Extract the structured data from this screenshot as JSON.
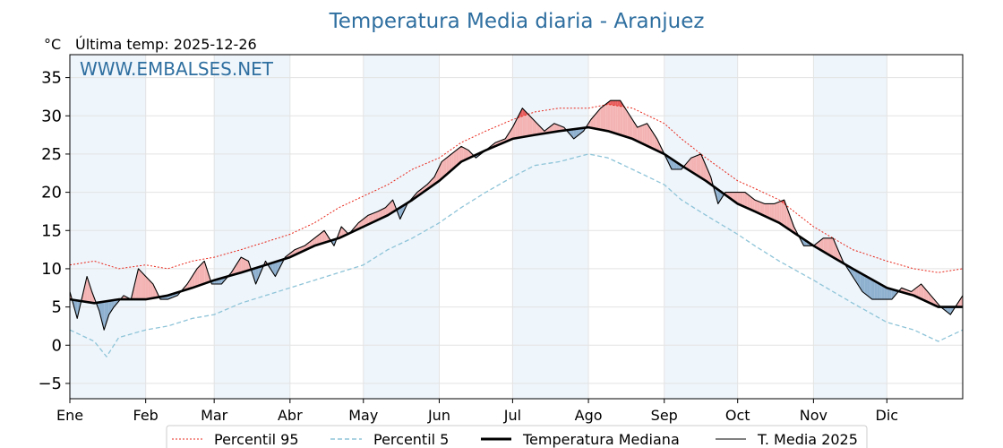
{
  "chart_data": {
    "type": "line",
    "title": "Temperatura Media diaria - Aranjuez",
    "unit_label": "°C",
    "last_temp_label": "Última temp: 2025-12-26",
    "watermark": "WWW.EMBALSES.NET",
    "ylim": [
      -7,
      38
    ],
    "yticks": [
      -5,
      0,
      5,
      10,
      15,
      20,
      25,
      30,
      35
    ],
    "xlim": [
      0,
      365
    ],
    "months": [
      "Ene",
      "Feb",
      "Mar",
      "Abr",
      "May",
      "Jun",
      "Jul",
      "Ago",
      "Sep",
      "Oct",
      "Nov",
      "Dic"
    ],
    "month_starts": [
      0,
      31,
      59,
      90,
      120,
      151,
      181,
      212,
      243,
      273,
      304,
      334
    ],
    "grid": true,
    "legend_position": "bottom",
    "colors": {
      "p95": "#e8281c",
      "p5": "#8ec4d8",
      "median": "#000000",
      "current": "#000000",
      "above_fill": "#f4b3b3",
      "above_strong": "#e85d5d",
      "below_fill": "#8fb1d0",
      "below_strong": "#2a5f96",
      "band": "#eef5fb",
      "title": "#2f6fa0"
    },
    "series": [
      {
        "name": "Percentil 95",
        "style": "dotted-red",
        "points": [
          [
            0,
            10.5
          ],
          [
            10,
            11
          ],
          [
            20,
            10
          ],
          [
            31,
            10.5
          ],
          [
            40,
            10
          ],
          [
            50,
            11
          ],
          [
            59,
            11.5
          ],
          [
            70,
            12.5
          ],
          [
            80,
            13.5
          ],
          [
            90,
            14.5
          ],
          [
            100,
            16
          ],
          [
            110,
            18
          ],
          [
            120,
            19.5
          ],
          [
            130,
            21
          ],
          [
            140,
            23
          ],
          [
            151,
            24.5
          ],
          [
            160,
            26.5
          ],
          [
            170,
            28
          ],
          [
            181,
            29.5
          ],
          [
            190,
            30.5
          ],
          [
            200,
            31
          ],
          [
            212,
            31
          ],
          [
            220,
            31.5
          ],
          [
            230,
            31
          ],
          [
            243,
            29
          ],
          [
            250,
            27
          ],
          [
            260,
            24.5
          ],
          [
            273,
            21.5
          ],
          [
            280,
            20.5
          ],
          [
            290,
            19
          ],
          [
            304,
            15.5
          ],
          [
            312,
            14
          ],
          [
            320,
            12.5
          ],
          [
            334,
            11
          ],
          [
            345,
            10
          ],
          [
            355,
            9.5
          ],
          [
            365,
            10
          ]
        ]
      },
      {
        "name": "Percentil 5",
        "style": "dashed-lightblue",
        "points": [
          [
            0,
            2
          ],
          [
            10,
            0.5
          ],
          [
            15,
            -1.5
          ],
          [
            20,
            1
          ],
          [
            31,
            2
          ],
          [
            40,
            2.5
          ],
          [
            50,
            3.5
          ],
          [
            59,
            4
          ],
          [
            70,
            5.5
          ],
          [
            80,
            6.5
          ],
          [
            90,
            7.5
          ],
          [
            100,
            8.5
          ],
          [
            110,
            9.5
          ],
          [
            120,
            10.5
          ],
          [
            130,
            12.5
          ],
          [
            140,
            14
          ],
          [
            151,
            16
          ],
          [
            160,
            18
          ],
          [
            170,
            20
          ],
          [
            181,
            22
          ],
          [
            190,
            23.5
          ],
          [
            200,
            24
          ],
          [
            212,
            25
          ],
          [
            220,
            24.5
          ],
          [
            230,
            23
          ],
          [
            243,
            21
          ],
          [
            250,
            19
          ],
          [
            260,
            17
          ],
          [
            273,
            14.5
          ],
          [
            280,
            13
          ],
          [
            290,
            11
          ],
          [
            304,
            8.5
          ],
          [
            312,
            7
          ],
          [
            320,
            5.5
          ],
          [
            334,
            3
          ],
          [
            345,
            2
          ],
          [
            355,
            0.5
          ],
          [
            365,
            2
          ]
        ]
      },
      {
        "name": "Temperatura Mediana",
        "style": "thick-black",
        "points": [
          [
            0,
            6
          ],
          [
            10,
            5.5
          ],
          [
            20,
            6
          ],
          [
            31,
            6
          ],
          [
            40,
            6.5
          ],
          [
            50,
            7.5
          ],
          [
            59,
            8.5
          ],
          [
            70,
            9.5
          ],
          [
            80,
            10.5
          ],
          [
            90,
            11.5
          ],
          [
            100,
            13
          ],
          [
            110,
            14
          ],
          [
            120,
            15.5
          ],
          [
            130,
            17
          ],
          [
            140,
            19
          ],
          [
            151,
            21.5
          ],
          [
            160,
            24
          ],
          [
            170,
            25.5
          ],
          [
            181,
            27
          ],
          [
            190,
            27.5
          ],
          [
            200,
            28
          ],
          [
            212,
            28.5
          ],
          [
            220,
            28
          ],
          [
            230,
            27
          ],
          [
            243,
            25
          ],
          [
            250,
            23.5
          ],
          [
            260,
            21.5
          ],
          [
            273,
            18.5
          ],
          [
            280,
            17.5
          ],
          [
            290,
            16
          ],
          [
            304,
            13
          ],
          [
            312,
            11.5
          ],
          [
            320,
            10
          ],
          [
            334,
            7.5
          ],
          [
            345,
            6.5
          ],
          [
            355,
            5
          ],
          [
            365,
            5
          ]
        ]
      },
      {
        "name": "T. Media 2025",
        "style": "thin-black",
        "points": [
          [
            0,
            7
          ],
          [
            3,
            3.5
          ],
          [
            7,
            9
          ],
          [
            9,
            7
          ],
          [
            12,
            4.5
          ],
          [
            14,
            2
          ],
          [
            16,
            4
          ],
          [
            18,
            5
          ],
          [
            22,
            6.5
          ],
          [
            25,
            6
          ],
          [
            28,
            10
          ],
          [
            31,
            9
          ],
          [
            34,
            8
          ],
          [
            37,
            6
          ],
          [
            40,
            6
          ],
          [
            44,
            6.5
          ],
          [
            48,
            8
          ],
          [
            52,
            10
          ],
          [
            55,
            11
          ],
          [
            58,
            8
          ],
          [
            62,
            8
          ],
          [
            66,
            9.5
          ],
          [
            70,
            11.5
          ],
          [
            73,
            11
          ],
          [
            76,
            8
          ],
          [
            80,
            11
          ],
          [
            84,
            9
          ],
          [
            88,
            11.5
          ],
          [
            92,
            12.5
          ],
          [
            96,
            13
          ],
          [
            100,
            14
          ],
          [
            104,
            15
          ],
          [
            108,
            13
          ],
          [
            111,
            15.5
          ],
          [
            114,
            14.5
          ],
          [
            118,
            16
          ],
          [
            122,
            17
          ],
          [
            126,
            17.5
          ],
          [
            129,
            18
          ],
          [
            132,
            19
          ],
          [
            135,
            16.5
          ],
          [
            138,
            18.5
          ],
          [
            142,
            20
          ],
          [
            146,
            21
          ],
          [
            149,
            22
          ],
          [
            152,
            24
          ],
          [
            156,
            25
          ],
          [
            160,
            26
          ],
          [
            163,
            25.5
          ],
          [
            166,
            24.5
          ],
          [
            170,
            25.5
          ],
          [
            174,
            26.5
          ],
          [
            178,
            27
          ],
          [
            181,
            28.5
          ],
          [
            185,
            31
          ],
          [
            188,
            30
          ],
          [
            191,
            29
          ],
          [
            194,
            28
          ],
          [
            198,
            29
          ],
          [
            202,
            28.5
          ],
          [
            206,
            27
          ],
          [
            210,
            28
          ],
          [
            213,
            29.5
          ],
          [
            217,
            31
          ],
          [
            221,
            32
          ],
          [
            225,
            32
          ],
          [
            228,
            30.5
          ],
          [
            232,
            28.5
          ],
          [
            236,
            29
          ],
          [
            240,
            27
          ],
          [
            243,
            25
          ],
          [
            246,
            23
          ],
          [
            250,
            23
          ],
          [
            254,
            24.5
          ],
          [
            258,
            25
          ],
          [
            262,
            22
          ],
          [
            265,
            18.5
          ],
          [
            268,
            20
          ],
          [
            272,
            20
          ],
          [
            276,
            20
          ],
          [
            280,
            19
          ],
          [
            284,
            18.5
          ],
          [
            288,
            18.5
          ],
          [
            292,
            19
          ],
          [
            296,
            15.5
          ],
          [
            300,
            13
          ],
          [
            304,
            13
          ],
          [
            308,
            14
          ],
          [
            312,
            14
          ],
          [
            316,
            11
          ],
          [
            320,
            9
          ],
          [
            324,
            7
          ],
          [
            328,
            6
          ],
          [
            332,
            6
          ],
          [
            336,
            6
          ],
          [
            340,
            7.5
          ],
          [
            344,
            7
          ],
          [
            348,
            8
          ],
          [
            352,
            6.5
          ],
          [
            356,
            5
          ],
          [
            360,
            4
          ],
          [
            363,
            5.5
          ],
          [
            365,
            6.5
          ]
        ]
      }
    ]
  }
}
